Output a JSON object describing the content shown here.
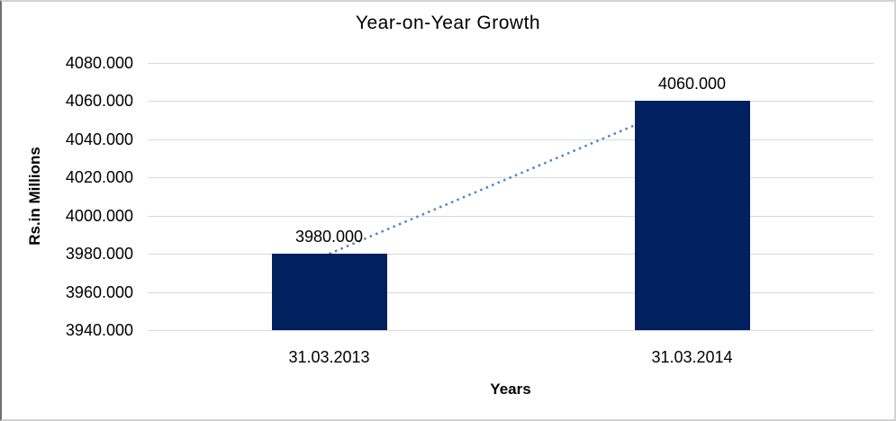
{
  "chart_data": {
    "type": "bar",
    "title": "Year-on-Year Growth",
    "xlabel": "Years",
    "ylabel": "Rs.in Millions",
    "categories": [
      "31.03.2013",
      "31.03.2014"
    ],
    "values": [
      3980,
      4060
    ],
    "data_labels": [
      "3980.000",
      "4060.000"
    ],
    "ylim": [
      3940,
      4080
    ],
    "ytick_step": 20,
    "ytick_labels": [
      "3940.000",
      "3960.000",
      "3980.000",
      "4000.000",
      "4020.000",
      "4040.000",
      "4060.000",
      "4080.000"
    ],
    "grid": "horizontal",
    "legend": "none",
    "trendline": true,
    "colors": {
      "bar": "#002060",
      "trendline": "#4a86c8",
      "gridline": "#d9d9d9",
      "text": "#000000",
      "background": "#ffffff",
      "frame_border": "#d2d2d2"
    }
  }
}
